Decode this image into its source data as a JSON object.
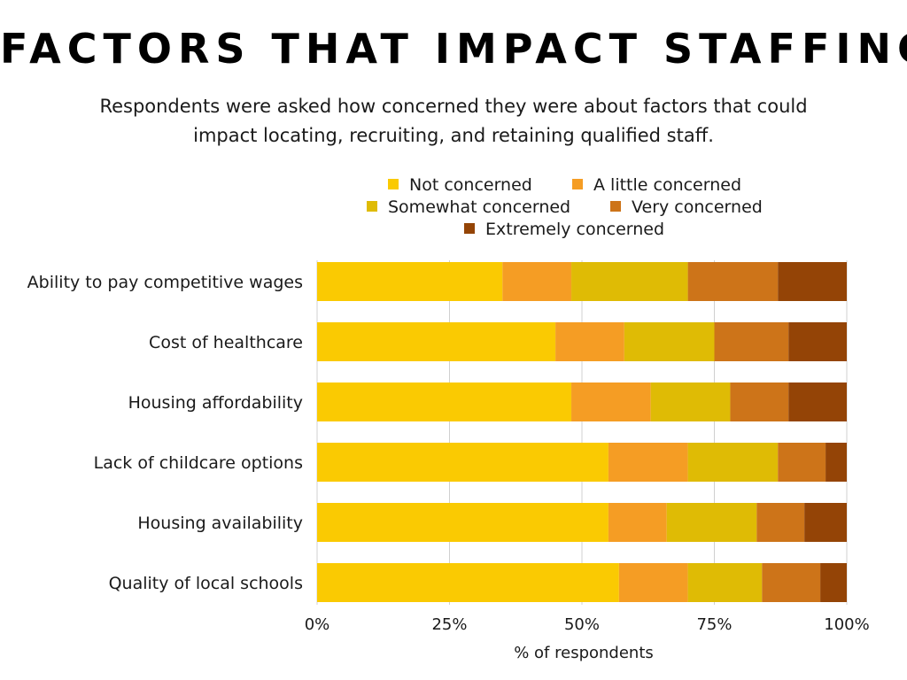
{
  "title": "FACTORS THAT IMPACT STAFFING",
  "subtitle": "Respondents were asked how concerned they were about factors that could impact locating, recruiting, and retaining qualified staff.",
  "chart_data": {
    "type": "bar",
    "orientation": "horizontal",
    "stacked": true,
    "categories": [
      "Ability to pay competitive wages",
      "Cost of healthcare",
      "Housing affordability",
      "Lack of childcare options",
      "Housing availability",
      "Quality of local schools"
    ],
    "series": [
      {
        "name": "Not concerned",
        "color": "#FACA02",
        "values": [
          35,
          45,
          48,
          55,
          55,
          57
        ]
      },
      {
        "name": "A little concerned",
        "color": "#F59D24",
        "values": [
          13,
          13,
          15,
          15,
          11,
          13
        ]
      },
      {
        "name": "Somewhat concerned",
        "color": "#DFBB05",
        "values": [
          22,
          17,
          15,
          17,
          17,
          14
        ]
      },
      {
        "name": "Very concerned",
        "color": "#CD7419",
        "values": [
          17,
          14,
          11,
          9,
          9,
          11
        ]
      },
      {
        "name": "Extremely concerned",
        "color": "#944406",
        "values": [
          13,
          11,
          11,
          4,
          8,
          5
        ]
      }
    ],
    "xlabel": "% of respondents",
    "ylabel": "",
    "xlim": [
      0,
      100
    ],
    "xticks": [
      0,
      25,
      50,
      75,
      100
    ],
    "xtick_labels": [
      "0%",
      "25%",
      "50%",
      "75%",
      "100%"
    ],
    "grid": true,
    "legend_position": "top"
  }
}
